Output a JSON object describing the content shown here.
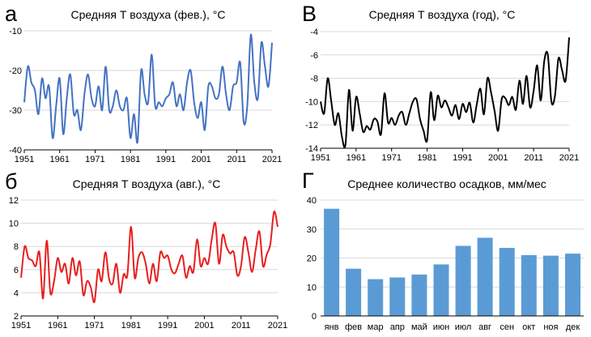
{
  "chart_data": [
    {
      "id": "a",
      "panel_letter": "а",
      "type": "line",
      "title": "Средняя Т воздуха (фев.), °C",
      "xlabel": "",
      "ylabel": "",
      "color": "#4472c4",
      "grid": true,
      "xlim": [
        1951,
        2021
      ],
      "ylim": [
        -40,
        -10
      ],
      "xticks": [
        1951,
        1961,
        1971,
        1981,
        1991,
        2001,
        2011,
        2021
      ],
      "yticks": [
        -40,
        -30,
        -20,
        -10
      ],
      "x_start": 1951,
      "values": [
        -28,
        -19,
        -23,
        -25,
        -31,
        -22,
        -27,
        -24,
        -37,
        -29,
        -22,
        -36,
        -27,
        -21,
        -31,
        -30,
        -35,
        -26,
        -21,
        -27,
        -29,
        -24,
        -30,
        -19,
        -30,
        -29,
        -25,
        -29,
        -30,
        -27,
        -37,
        -31,
        -38,
        -20,
        -26,
        -28,
        -16,
        -29,
        -28,
        -29,
        -27,
        -26,
        -23,
        -29,
        -26,
        -30,
        -23,
        -20,
        -28,
        -32,
        -28,
        -35,
        -24,
        -24,
        -27,
        -26,
        -19,
        -26,
        -30,
        -24,
        -23,
        -18,
        -33,
        -29,
        -11,
        -23,
        -27,
        -13,
        -19,
        -24,
        -13
      ]
    },
    {
      "id": "v",
      "panel_letter": "В",
      "type": "line",
      "title": "Средняя Т воздуха (год), °C",
      "xlabel": "",
      "ylabel": "",
      "color": "#000000",
      "grid": true,
      "xlim": [
        1951,
        2021
      ],
      "ylim": [
        -14,
        -4
      ],
      "xticks": [
        1951,
        1961,
        1971,
        1981,
        1991,
        2001,
        2011,
        2021
      ],
      "yticks": [
        -14,
        -12,
        -10,
        -8,
        -6,
        -4
      ],
      "x_start": 1951,
      "values": [
        -10,
        -11,
        -8,
        -10,
        -12,
        -11,
        -13,
        -13.7,
        -9,
        -12.5,
        -9.6,
        -11,
        -12.6,
        -12.1,
        -12.4,
        -11.5,
        -11.7,
        -12.8,
        -9.3,
        -11.8,
        -11.4,
        -12,
        -11.2,
        -10.9,
        -12,
        -11,
        -10,
        -9.8,
        -11.5,
        -12.5,
        -13.3,
        -9.2,
        -11.6,
        -9.5,
        -10.5,
        -9.9,
        -10.5,
        -11.2,
        -10.3,
        -11.5,
        -10.2,
        -10.9,
        -10.1,
        -11.8,
        -10.2,
        -8.9,
        -11.1,
        -8,
        -9.2,
        -10.8,
        -12.5,
        -9.8,
        -9.7,
        -10.3,
        -9.6,
        -10.7,
        -8.2,
        -10.2,
        -7.8,
        -10.5,
        -9.1,
        -6.9,
        -9.9,
        -6.5,
        -6,
        -10,
        -9.5,
        -6.3,
        -7.3,
        -8.2,
        -4.5
      ]
    },
    {
      "id": "b",
      "panel_letter": "б",
      "type": "line",
      "title": "Средняя Т воздуха (авг.), °C",
      "xlabel": "",
      "ylabel": "",
      "color": "#e81e1e",
      "grid": true,
      "xlim": [
        1951,
        2021
      ],
      "ylim": [
        2,
        12
      ],
      "xticks": [
        1951,
        1961,
        1971,
        1981,
        1991,
        2001,
        2011,
        2021
      ],
      "yticks": [
        2,
        4,
        6,
        8,
        10,
        12
      ],
      "x_start": 1951,
      "values": [
        5.3,
        8,
        7,
        6.8,
        6.3,
        7.5,
        3.5,
        8.5,
        4,
        5,
        7,
        5.8,
        6.5,
        4.8,
        7,
        5.5,
        6.7,
        3.8,
        5,
        4.5,
        3.2,
        6,
        5,
        7.5,
        5.2,
        4.8,
        6.5,
        4,
        5.6,
        5.5,
        9.7,
        5.3,
        7,
        7.5,
        6.5,
        4.8,
        6.5,
        5,
        7.5,
        7,
        7.2,
        6,
        5.7,
        6.5,
        7.2,
        5.3,
        6.3,
        5.8,
        8.6,
        6.3,
        7,
        6.5,
        8.6,
        10,
        6.5,
        9,
        8,
        7.4,
        7.5,
        5.5,
        6.3,
        8.8,
        7.5,
        5.8,
        7.7,
        9.3,
        6.3,
        7.3,
        8.2,
        11,
        9.7
      ]
    },
    {
      "id": "g",
      "panel_letter": "Г",
      "type": "bar",
      "title": "Среднее количество осадков, мм/мес",
      "xlabel": "",
      "ylabel": "",
      "color": "#5b9bd5",
      "grid": true,
      "ylim": [
        0,
        40
      ],
      "yticks": [
        0,
        10,
        20,
        30,
        40
      ],
      "categories": [
        "янв",
        "фев",
        "мар",
        "апр",
        "май",
        "июн",
        "июл",
        "авг",
        "сен",
        "окт",
        "ноя",
        "дек"
      ],
      "values": [
        37,
        16.3,
        12.7,
        13.3,
        14.3,
        17.8,
        24.2,
        27,
        23.5,
        21,
        20.8,
        21.5
      ]
    }
  ]
}
